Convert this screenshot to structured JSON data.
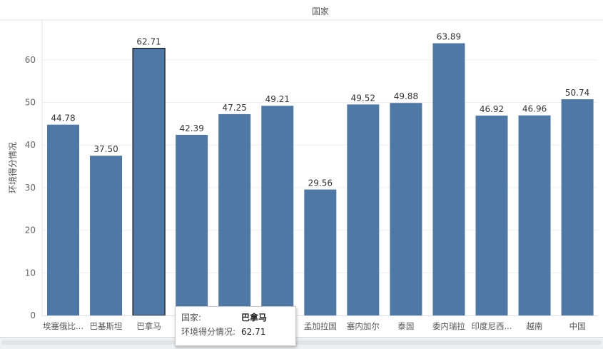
{
  "chart_data": {
    "type": "bar",
    "title": "国家",
    "ylabel": "环境得分情况",
    "xlabel": "",
    "categories": [
      "埃塞俄比...",
      "巴基斯坦",
      "巴拿马",
      "",
      "",
      "",
      "孟加拉国",
      "塞内加尔",
      "泰国",
      "委内瑞拉",
      "印度尼西...",
      "越南",
      "中国"
    ],
    "values": [
      44.78,
      37.5,
      62.71,
      42.39,
      47.25,
      49.21,
      29.56,
      49.52,
      49.88,
      63.89,
      46.92,
      46.96,
      50.74
    ],
    "value_labels": [
      "44.78",
      "37.50",
      "62.71",
      "42.39",
      "47.25",
      "49.21",
      "29.56",
      "49.52",
      "49.88",
      "63.89",
      "46.92",
      "46.96",
      "50.74"
    ],
    "yticks": [
      0,
      10,
      20,
      30,
      40,
      50,
      60
    ],
    "ylim": [
      0,
      68
    ],
    "grid": true,
    "bar_color": "#4e79a7",
    "highlighted_index": 2
  },
  "tooltip": {
    "country_key": "国家:",
    "country_value": "巴拿马",
    "score_key": "环境得分情况:",
    "score_value": "62.71"
  }
}
